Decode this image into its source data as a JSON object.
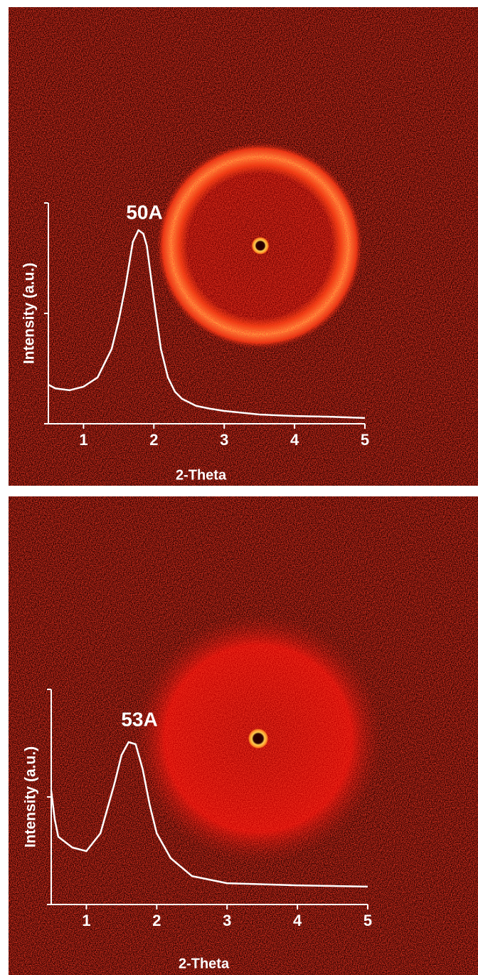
{
  "chart_data": [
    {
      "type": "line",
      "annotation": "50A",
      "x_label": "2-Theta",
      "y_label": "Intensity (a.u.)",
      "x": [
        0.5,
        0.6,
        0.8,
        1.0,
        1.2,
        1.4,
        1.5,
        1.6,
        1.7,
        1.78,
        1.85,
        1.9,
        2.0,
        2.1,
        2.2,
        2.3,
        2.4,
        2.6,
        2.8,
        3.0,
        3.5,
        4.0,
        4.5,
        5.0
      ],
      "values": [
        0.177,
        0.16,
        0.152,
        0.168,
        0.21,
        0.339,
        0.468,
        0.629,
        0.823,
        0.877,
        0.861,
        0.806,
        0.565,
        0.339,
        0.21,
        0.145,
        0.113,
        0.081,
        0.068,
        0.058,
        0.042,
        0.035,
        0.032,
        0.026
      ],
      "color": "#ffffff",
      "xlim": [
        0.5,
        5
      ],
      "xticks": [
        1,
        2,
        3,
        4,
        5
      ],
      "ylim": [
        0,
        1
      ],
      "yticks": [
        0,
        0.5,
        1
      ]
    },
    {
      "type": "line",
      "annotation": "53A",
      "x_label": "2-Theta",
      "y_label": "Intensity (a.u.)",
      "x": [
        0.5,
        0.55,
        0.6,
        0.8,
        1.0,
        1.2,
        1.4,
        1.5,
        1.6,
        1.7,
        1.8,
        1.9,
        2.0,
        2.2,
        2.5,
        3.0,
        4.0,
        5.0
      ],
      "values": [
        0.53,
        0.397,
        0.315,
        0.265,
        0.248,
        0.331,
        0.563,
        0.695,
        0.755,
        0.745,
        0.629,
        0.464,
        0.331,
        0.215,
        0.132,
        0.099,
        0.089,
        0.083
      ],
      "color": "#ffffff",
      "xlim": [
        0.5,
        5
      ],
      "xticks": [
        1,
        2,
        3,
        4,
        5
      ],
      "ylim": [
        0,
        1
      ],
      "yticks": [
        0,
        0.5,
        1
      ]
    }
  ]
}
